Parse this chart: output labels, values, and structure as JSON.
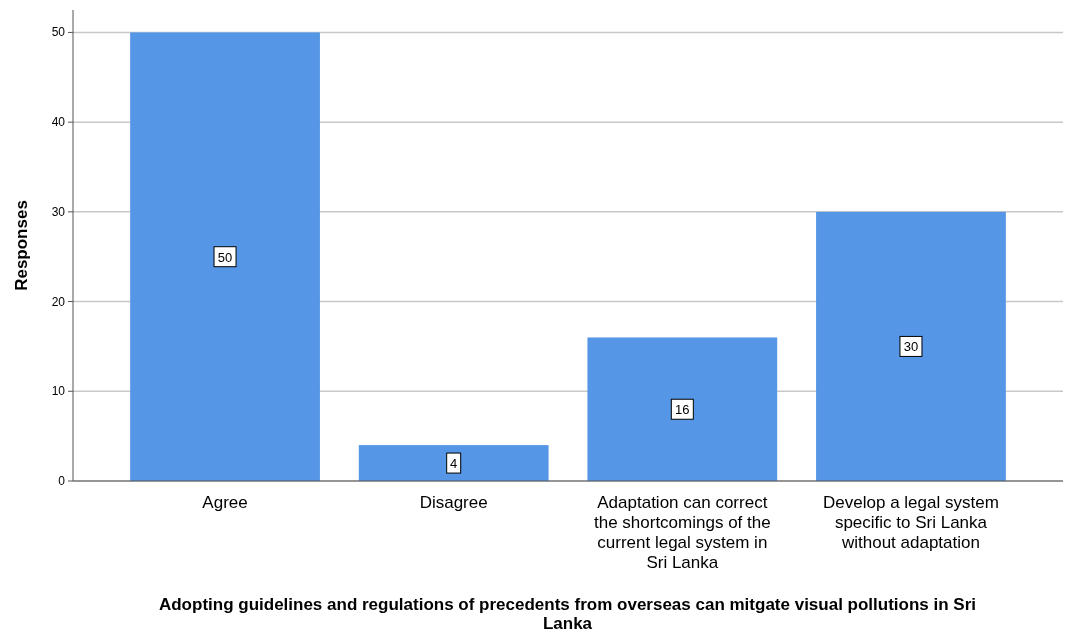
{
  "chart_data": {
    "type": "bar",
    "xlabel": "Adopting guidelines and regulations of precedents from overseas can mitgate visual pollutions in Sri Lanka",
    "ylabel": "Responses",
    "categories": [
      "Agree",
      "Disagree",
      "Adaptation can correct the shortcomings of the current legal system in Sri Lanka",
      "Develop a legal system specific to Sri Lanka without adaptation"
    ],
    "values": [
      50,
      4,
      16,
      30
    ],
    "color": "#5596e6",
    "ylim": [
      0,
      52.5
    ],
    "yticks": [
      0,
      10,
      20,
      30,
      40,
      50
    ],
    "grid": "y",
    "data_labels": true
  }
}
